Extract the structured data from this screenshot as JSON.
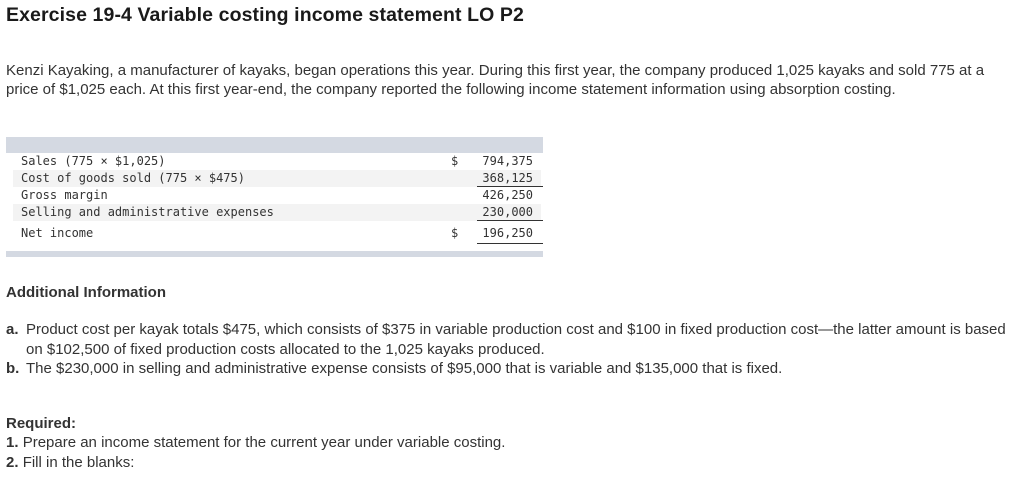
{
  "title": "Exercise 19-4 Variable costing income statement LO P2",
  "intro": "Kenzi Kayaking, a manufacturer of kayaks, began operations this year. During this first year, the company produced 1,025 kayaks and sold 775 at a price of $1,025 each. At this first year-end, the company reported the following income statement information using absorption costing.",
  "statement": {
    "rows": [
      {
        "label": "Sales (775 × $1,025)",
        "dollar": "$",
        "amount": "794,375"
      },
      {
        "label": "Cost of goods sold (775 × $475)",
        "dollar": "",
        "amount": "368,125"
      },
      {
        "label": "Gross margin",
        "dollar": "",
        "amount": "426,250"
      },
      {
        "label": "Selling and administrative expenses",
        "dollar": "",
        "amount": "230,000"
      },
      {
        "label": "Net income",
        "dollar": "$",
        "amount": "196,250"
      }
    ]
  },
  "additional": {
    "heading": "Additional Information",
    "items": [
      {
        "marker": "a.",
        "text": "Product cost per kayak totals $475, which consists of $375 in variable production cost and $100 in fixed production cost—the latter amount is based on $102,500 of fixed production costs allocated to the 1,025 kayaks produced."
      },
      {
        "marker": "b.",
        "text": "The $230,000 in selling and administrative expense consists of $95,000 that is variable and $135,000 that is fixed."
      }
    ]
  },
  "required": {
    "heading": "Required:",
    "items": [
      {
        "num": "1.",
        "text": "Prepare an income statement for the current year under variable costing."
      },
      {
        "num": "2.",
        "text": "Fill in the blanks:"
      }
    ]
  }
}
